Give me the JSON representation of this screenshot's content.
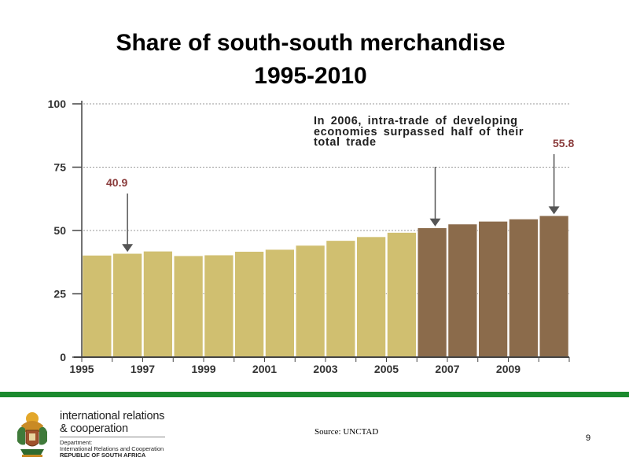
{
  "slide": {
    "title_line1": "Share of south-south merchandise",
    "title_line2": "1995-2010",
    "source": "Source: UNCTAD",
    "page_number": "9"
  },
  "logo": {
    "name_line1": "international relations",
    "name_line2": "& cooperation",
    "dept_line1": "Department:",
    "dept_line2": "International Relations and Cooperation",
    "dept_line3": "REPUBLIC OF SOUTH AFRICA"
  },
  "chart_data": {
    "type": "bar",
    "title": "Share of south-south merchandise 1995-2010",
    "x": [
      1995,
      1996,
      1997,
      1998,
      1999,
      2000,
      2001,
      2002,
      2003,
      2004,
      2005,
      2006,
      2007,
      2008,
      2009,
      2010
    ],
    "x_tick_labels": [
      "1995",
      "1997",
      "1999",
      "2001",
      "2003",
      "2005",
      "2007",
      "2009"
    ],
    "values": [
      40.2,
      40.9,
      41.8,
      40.0,
      40.3,
      41.7,
      42.5,
      44.1,
      46.0,
      47.5,
      49.2,
      51.0,
      52.5,
      53.6,
      54.5,
      55.8
    ],
    "ylim": [
      0,
      100
    ],
    "y_ticks": [
      0,
      25,
      50,
      75,
      100
    ],
    "grid": "horizontal dotted",
    "colors": {
      "before_2006": "#d0bf70",
      "from_2006": "#8b6b4b",
      "grid": "#9a9a9a",
      "annotation_value": "#8a3b3b"
    },
    "annotations": [
      {
        "year": 1996,
        "label": "40.9"
      },
      {
        "year": 2006,
        "label": "In 2006, intra-trade of developing economies surpassed half of their total trade"
      },
      {
        "year": 2010,
        "label": "55.8"
      }
    ]
  }
}
